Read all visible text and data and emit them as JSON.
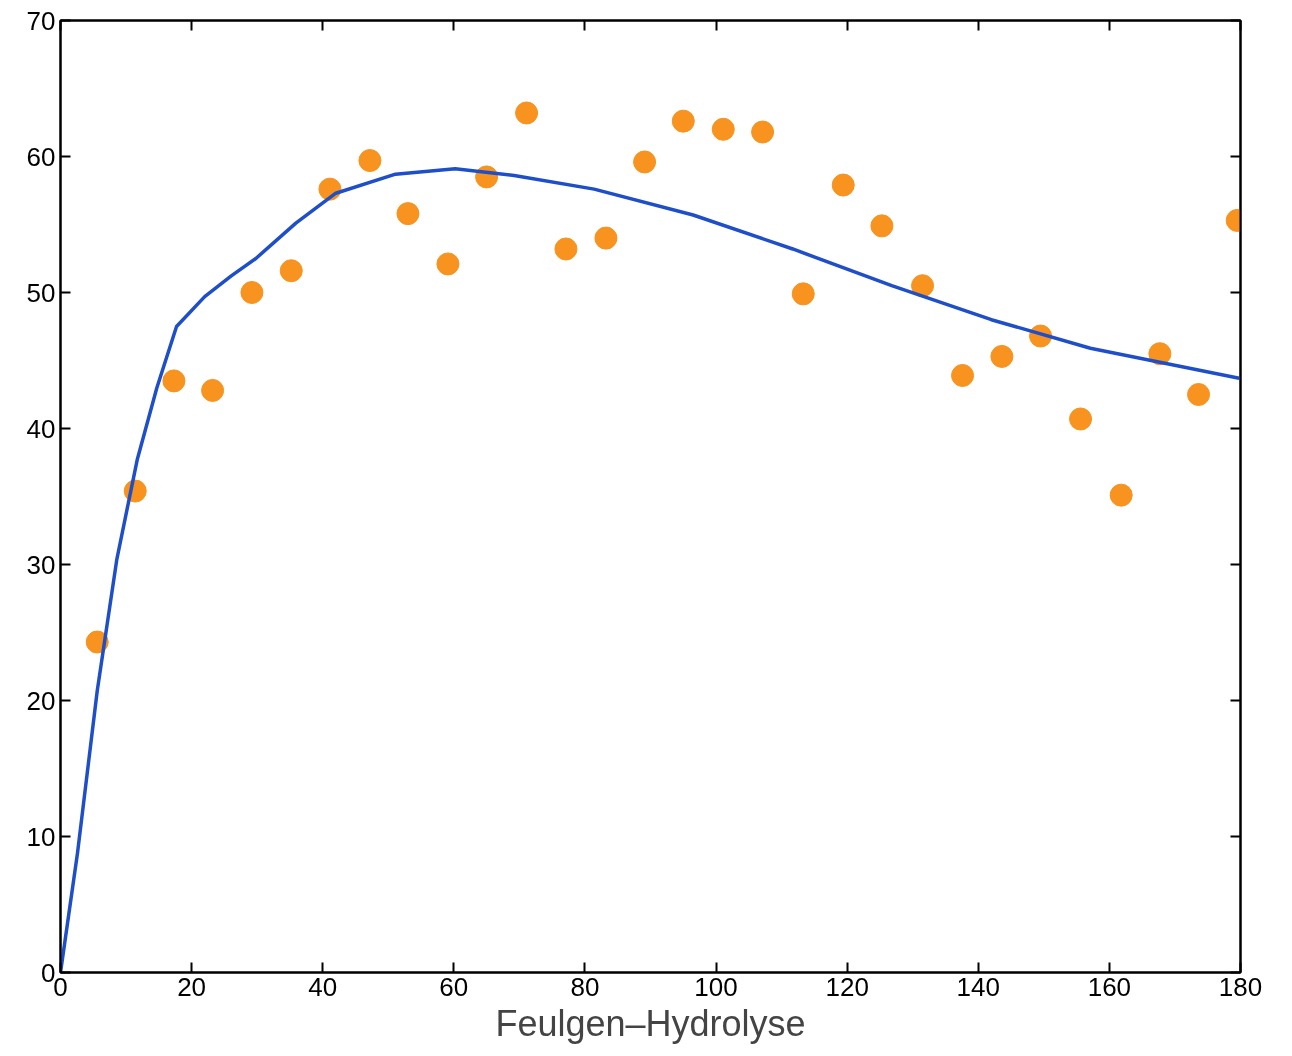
{
  "chart_data": {
    "type": "scatter",
    "xlabel": "Feulgen–Hydrolyse",
    "xlim": [
      0,
      180
    ],
    "ylim": [
      0,
      70
    ],
    "xticks": [
      0,
      20,
      40,
      60,
      80,
      100,
      120,
      140,
      160,
      180
    ],
    "yticks": [
      0,
      10,
      20,
      30,
      40,
      50,
      60,
      70
    ],
    "grid": false,
    "series": [
      {
        "marker": "circle",
        "color": "#f7931e",
        "x": [
          5.6,
          11.4,
          17.3,
          23.2,
          29.2,
          35.2,
          41.1,
          47.2,
          53.0,
          59.1,
          65.0,
          71.1,
          77.1,
          83.2,
          89.1,
          95.0,
          101.1,
          107.1,
          113.3,
          119.4,
          125.3,
          131.5,
          137.6,
          143.6,
          149.5,
          155.6,
          161.8,
          167.7,
          173.6,
          179.5
        ],
        "values": [
          24.3,
          35.4,
          43.5,
          42.8,
          50.0,
          51.6,
          57.6,
          59.7,
          55.8,
          52.1,
          58.5,
          63.2,
          53.2,
          54.0,
          59.6,
          62.6,
          62.0,
          61.8,
          49.9,
          57.9,
          54.9,
          50.5,
          43.9,
          45.3,
          46.8,
          40.7,
          35.1,
          45.5,
          42.5,
          55.3
        ]
      },
      {
        "type": "line",
        "marker": "none",
        "line_style": "solid",
        "color": "#1f4fc8",
        "x": [
          0,
          2.6,
          5.6,
          8.6,
          11.7,
          14.7,
          17.7,
          22.0,
          26.0,
          29.8,
          35.9,
          42.0,
          51.1,
          60.2,
          69.2,
          81.4,
          96.5,
          111.7,
          126.8,
          142.0,
          157.1,
          179.8
        ],
        "values": [
          0,
          8.8,
          20.7,
          30.4,
          37.7,
          43.0,
          47.5,
          49.7,
          51.2,
          52.5,
          55.1,
          57.3,
          58.7,
          59.1,
          58.6,
          57.6,
          55.7,
          53.2,
          50.5,
          48.0,
          45.9,
          43.7
        ]
      }
    ]
  }
}
